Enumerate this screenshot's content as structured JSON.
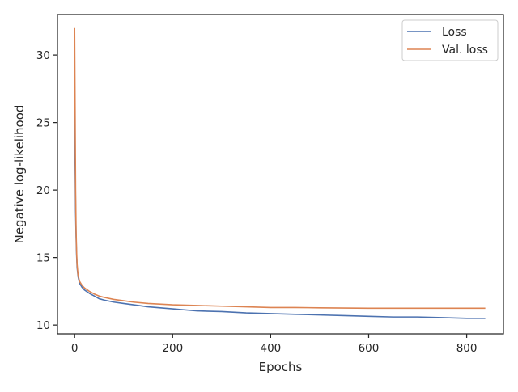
{
  "chart_data": {
    "type": "line",
    "title": "",
    "xlabel": "Epochs",
    "ylabel": "Negative log-likelihood",
    "xlim": [
      -35,
      875
    ],
    "ylim": [
      9.35,
      33.0
    ],
    "xticks": [
      0,
      200,
      400,
      600,
      800
    ],
    "yticks": [
      10,
      15,
      20,
      25,
      30
    ],
    "grid": false,
    "legend_position": "top-right",
    "series": [
      {
        "name": "Loss",
        "color": "#4c72b0",
        "x": [
          0,
          1,
          2,
          3,
          4,
          5,
          7,
          10,
          15,
          20,
          30,
          40,
          50,
          60,
          80,
          100,
          120,
          150,
          200,
          250,
          300,
          350,
          400,
          450,
          500,
          550,
          600,
          650,
          700,
          750,
          800,
          838
        ],
        "y": [
          26.0,
          22.0,
          18.5,
          16.5,
          15.2,
          14.3,
          13.6,
          13.1,
          12.8,
          12.6,
          12.35,
          12.15,
          11.95,
          11.85,
          11.7,
          11.6,
          11.5,
          11.35,
          11.2,
          11.05,
          11.0,
          10.9,
          10.85,
          10.8,
          10.75,
          10.7,
          10.65,
          10.6,
          10.6,
          10.55,
          10.5,
          10.5
        ]
      },
      {
        "name": "Val. loss",
        "color": "#dd8452",
        "x": [
          0,
          1,
          2,
          3,
          4,
          5,
          7,
          10,
          15,
          20,
          30,
          40,
          50,
          60,
          80,
          100,
          120,
          150,
          200,
          250,
          300,
          350,
          400,
          450,
          500,
          550,
          600,
          650,
          700,
          750,
          800,
          838
        ],
        "y": [
          32.0,
          26.0,
          20.0,
          17.0,
          15.5,
          14.5,
          13.7,
          13.25,
          12.95,
          12.75,
          12.5,
          12.3,
          12.15,
          12.05,
          11.9,
          11.8,
          11.7,
          11.6,
          11.5,
          11.45,
          11.4,
          11.35,
          11.3,
          11.3,
          11.28,
          11.26,
          11.25,
          11.25,
          11.25,
          11.25,
          11.25,
          11.25
        ]
      }
    ]
  }
}
